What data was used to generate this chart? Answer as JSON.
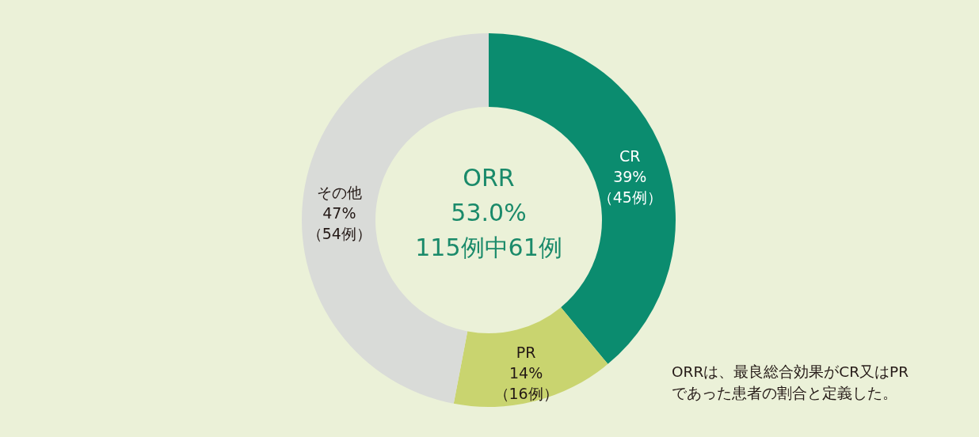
{
  "chart_data": {
    "type": "donut",
    "categories": [
      "CR",
      "PR",
      "その他"
    ],
    "values": [
      39,
      14,
      47
    ],
    "value_labels": [
      "39%\n（45例）",
      "14%\n（16例）",
      "47%\n（54例）"
    ],
    "colors": [
      "#0b8c6f",
      "#c9d46f",
      "#d9dbd8"
    ],
    "annotations": [
      "ORR\n53.0%\n115例中61例",
      "ORRは、最良総合効果がCR又はPR\nであった患者の割合と定義した。"
    ]
  }
}
